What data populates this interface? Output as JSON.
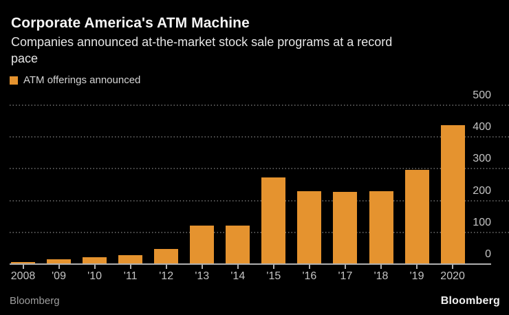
{
  "header": {
    "title": "Corporate America's ATM Machine",
    "subtitle_lines": [
      "Companies announced at-the-market stock sale programs at a record",
      "pace"
    ]
  },
  "legend": {
    "label": "ATM offerings announced"
  },
  "chart_data": {
    "type": "bar",
    "title": "Corporate America's ATM Machine",
    "subtitle": "Companies announced at-the-market stock sale programs at a record pace",
    "series_name": "ATM offerings announced",
    "categories": [
      "2008",
      "'09",
      "'10",
      "'11",
      "'12",
      "'13",
      "'14",
      "'15",
      "'16",
      "'17",
      "'18",
      "'19",
      "2020"
    ],
    "values": [
      5,
      12,
      20,
      27,
      45,
      120,
      120,
      270,
      228,
      225,
      227,
      295,
      435
    ],
    "yticks": [
      0,
      100,
      200,
      300,
      400,
      500
    ],
    "ylim": [
      0,
      500
    ],
    "xlabel": "",
    "ylabel": "",
    "bar_color": "#E5932F",
    "grid": "dotted horizontal gridlines",
    "legend_position": "top-left",
    "value_axis_side": "right"
  },
  "footer": {
    "source": "Bloomberg",
    "logo": "Bloomberg"
  },
  "colors": {
    "background": "#000000",
    "bar": "#E5932F",
    "title": "#F5F5F5",
    "subtitle": "#E6E6E6",
    "legend_text": "#D6D6D6",
    "axis_label": "#C4C4C4",
    "gridline": "#565656",
    "baseline": "#B0B0B0",
    "source": "#9E9E9E",
    "logo": "#F0F0F0"
  }
}
